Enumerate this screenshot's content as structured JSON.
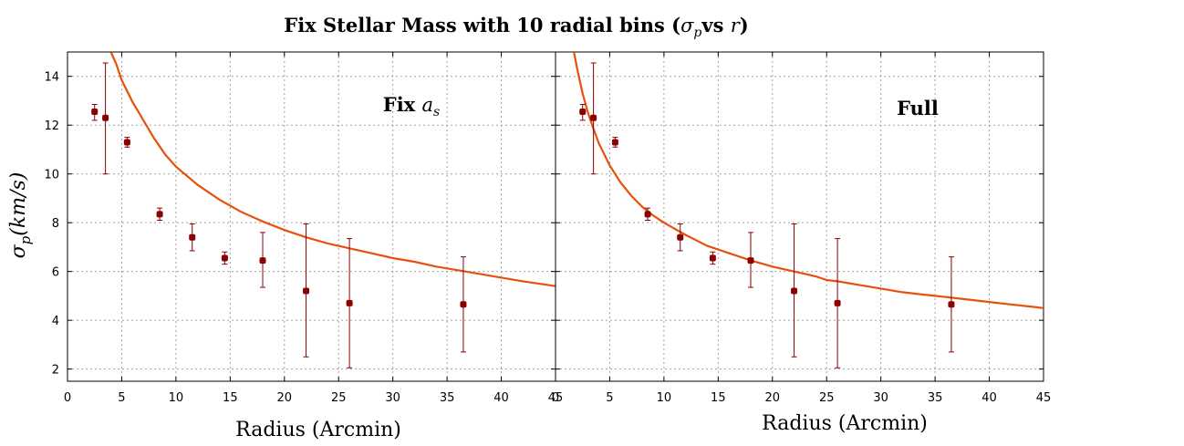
{
  "figure": {
    "title_main": "Fix Stellar Mass with 10 radial bins (",
    "title_sym": "σ",
    "title_sub": "p",
    "title_vs": "vs ",
    "title_r": "r",
    "title_close": ")"
  },
  "colors": {
    "model_curve": "#e8500e",
    "data_points": "#8b0000",
    "grid": "#a0a0a0"
  },
  "chart_data": [
    {
      "type": "scatter",
      "annotation_text": "Fix ",
      "annotation_sym": "a",
      "annotation_sub": "s",
      "xlabel": "Radius (Arcmin)",
      "ylabel_sym": "σ",
      "ylabel_sub": "p",
      "ylabel_rest": "(km/s)",
      "xlim": [
        0,
        45
      ],
      "ylim": [
        1.5,
        15
      ],
      "xticks": [
        "0",
        "5",
        "10",
        "15",
        "20",
        "25",
        "30",
        "35",
        "40",
        "45"
      ],
      "yticks": [
        "2",
        "4",
        "6",
        "8",
        "10",
        "12",
        "14"
      ],
      "grid": true,
      "points": [
        {
          "x": 2.5,
          "y": 12.55,
          "lo": 12.2,
          "hi": 12.85
        },
        {
          "x": 3.5,
          "y": 12.3,
          "lo": 10.0,
          "hi": 14.55
        },
        {
          "x": 5.5,
          "y": 11.3,
          "lo": 11.1,
          "hi": 11.5
        },
        {
          "x": 8.5,
          "y": 8.35,
          "lo": 8.1,
          "hi": 8.6
        },
        {
          "x": 11.5,
          "y": 7.4,
          "lo": 6.85,
          "hi": 7.95
        },
        {
          "x": 14.5,
          "y": 6.55,
          "lo": 6.3,
          "hi": 6.8
        },
        {
          "x": 18.0,
          "y": 6.45,
          "lo": 5.35,
          "hi": 7.6
        },
        {
          "x": 22.0,
          "y": 5.2,
          "lo": 2.5,
          "hi": 7.95
        },
        {
          "x": 26.0,
          "y": 4.7,
          "lo": 2.05,
          "hi": 7.35
        },
        {
          "x": 36.5,
          "y": 4.65,
          "lo": 2.7,
          "hi": 6.6
        }
      ],
      "model": {
        "x": [
          4.0,
          4.5,
          5.0,
          6.0,
          7.0,
          8.0,
          9.0,
          10.0,
          12.0,
          14.0,
          16.0,
          18.0,
          20.0,
          22.0,
          24.0,
          26.0,
          28.0,
          30.0,
          32.0,
          34.0,
          36.0,
          38.0,
          40.0,
          42.0,
          45.0
        ],
        "y": [
          15.0,
          14.5,
          13.85,
          12.95,
          12.2,
          11.45,
          10.8,
          10.3,
          9.55,
          8.95,
          8.45,
          8.05,
          7.7,
          7.4,
          7.15,
          6.95,
          6.75,
          6.55,
          6.4,
          6.2,
          6.05,
          5.9,
          5.75,
          5.6,
          5.4
        ]
      }
    },
    {
      "type": "scatter",
      "annotation_text": "Full",
      "xlabel": "Radius (Arcmin)",
      "xlim": [
        0,
        45
      ],
      "ylim": [
        1.5,
        15
      ],
      "xticks": [
        "0",
        "5",
        "10",
        "15",
        "20",
        "25",
        "30",
        "35",
        "40",
        "45"
      ],
      "grid": true,
      "points": [
        {
          "x": 2.5,
          "y": 12.55,
          "lo": 12.2,
          "hi": 12.85
        },
        {
          "x": 3.5,
          "y": 12.3,
          "lo": 10.0,
          "hi": 14.55
        },
        {
          "x": 5.5,
          "y": 11.3,
          "lo": 11.1,
          "hi": 11.5
        },
        {
          "x": 8.5,
          "y": 8.35,
          "lo": 8.1,
          "hi": 8.6
        },
        {
          "x": 11.5,
          "y": 7.4,
          "lo": 6.85,
          "hi": 7.95
        },
        {
          "x": 14.5,
          "y": 6.55,
          "lo": 6.3,
          "hi": 6.8
        },
        {
          "x": 18.0,
          "y": 6.45,
          "lo": 5.35,
          "hi": 7.6
        },
        {
          "x": 22.0,
          "y": 5.2,
          "lo": 2.5,
          "hi": 7.95
        },
        {
          "x": 26.0,
          "y": 4.7,
          "lo": 2.05,
          "hi": 7.35
        },
        {
          "x": 36.5,
          "y": 4.65,
          "lo": 2.7,
          "hi": 6.6
        }
      ],
      "model": {
        "x": [
          1.7,
          2.0,
          2.5,
          3.0,
          3.5,
          4.0,
          5.0,
          6.0,
          7.0,
          8.0,
          9.0,
          10.0,
          12.0,
          14.0,
          16.0,
          18.0,
          20.0,
          22.0,
          24.0,
          25.0,
          26.0,
          28.0,
          30.0,
          32.0,
          34.0,
          36.0,
          38.0,
          40.0,
          42.0,
          44.0,
          45.0
        ],
        "y": [
          15.0,
          14.3,
          13.3,
          12.5,
          11.85,
          11.25,
          10.35,
          9.65,
          9.1,
          8.65,
          8.3,
          8.0,
          7.5,
          7.05,
          6.75,
          6.45,
          6.2,
          6.0,
          5.8,
          5.65,
          5.6,
          5.45,
          5.3,
          5.15,
          5.05,
          4.95,
          4.85,
          4.75,
          4.65,
          4.55,
          4.5
        ]
      }
    }
  ]
}
